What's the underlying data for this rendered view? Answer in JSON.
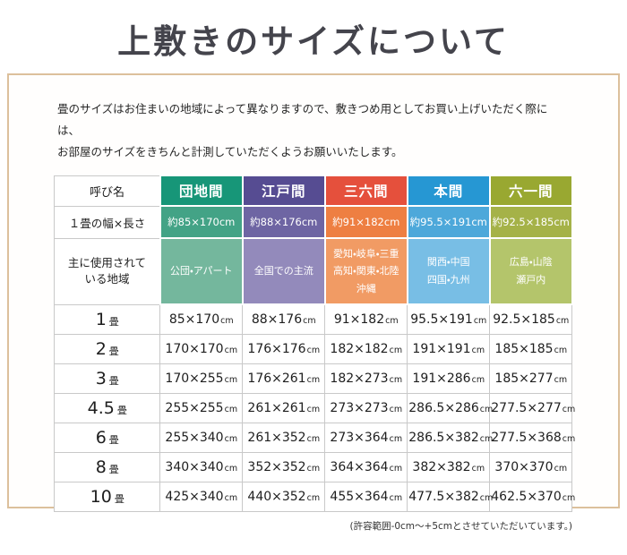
{
  "page": {
    "title": "上敷きのサイズについて",
    "intro_line1": "畳のサイズはお住まいの地域によって異なりますので、敷きつめ用としてお買い上げいただく際には、",
    "intro_line2": "お部屋のサイズをきちんと計測していただくようお願いいたします。",
    "footnote": "(許容範囲-0cm～+5cmとさせていただいています。)"
  },
  "colors": {
    "frame_border": "#dcc09c",
    "grid_line": "#c9c9c9",
    "title_text": "#44444c",
    "column_palette": [
      {
        "header": "#179678",
        "one_mat": "#43a386",
        "regions": "#74b79d"
      },
      {
        "header": "#564c92",
        "one_mat": "#6e65a3",
        "regions": "#938abb"
      },
      {
        "header": "#e5503c",
        "one_mat": "#ee7f42",
        "regions": "#f19b64"
      },
      {
        "header": "#2697d3",
        "one_mat": "#4da8da",
        "regions": "#78bee5"
      },
      {
        "header": "#99a831",
        "one_mat": "#a5b248",
        "regions": "#b4c56b"
      }
    ]
  },
  "chart_data": {
    "type": "table",
    "corner_label": "呼び名",
    "row_labels": {
      "one_mat": "１畳の幅×長さ",
      "regions": "主に使用されている地域"
    },
    "columns": [
      {
        "name": "団地間",
        "one_mat": "約85×170cm",
        "regions": "公団・アパート"
      },
      {
        "name": "江戸間",
        "one_mat": "約88×176cm",
        "regions": "全国での主流"
      },
      {
        "name": "三六間",
        "one_mat": "約91×182cm",
        "regions": "愛知・岐阜・三重\n高知・関東・北陸\n沖縄"
      },
      {
        "name": "本間",
        "one_mat": "約95.5×191cm",
        "regions": "関西・中国\n四国・九州"
      },
      {
        "name": "六一間",
        "one_mat": "約92.5×185cm",
        "regions": "広島・山陰\n瀬戸内"
      }
    ],
    "size_rows": [
      {
        "num": "1",
        "unit": "畳",
        "values": [
          "85×170cm",
          "88×176cm",
          "91×182cm",
          "95.5×191cm",
          "92.5×185cm"
        ]
      },
      {
        "num": "2",
        "unit": "畳",
        "values": [
          "170×170cm",
          "176×176cm",
          "182×182cm",
          "191×191cm",
          "185×185cm"
        ]
      },
      {
        "num": "3",
        "unit": "畳",
        "values": [
          "170×255cm",
          "176×261cm",
          "182×273cm",
          "191×286cm",
          "185×277cm"
        ]
      },
      {
        "num": "4.5",
        "unit": "畳",
        "values": [
          "255×255cm",
          "261×261cm",
          "273×273cm",
          "286.5×286cm",
          "277.5×277cm"
        ]
      },
      {
        "num": "6",
        "unit": "畳",
        "values": [
          "255×340cm",
          "261×352cm",
          "273×364cm",
          "286.5×382cm",
          "277.5×368cm"
        ]
      },
      {
        "num": "8",
        "unit": "畳",
        "values": [
          "340×340cm",
          "352×352cm",
          "364×364cm",
          "382×382cm",
          "370×370cm"
        ]
      },
      {
        "num": "10",
        "unit": "畳",
        "values": [
          "425×340cm",
          "440×352cm",
          "455×364cm",
          "477.5×382cm",
          "462.5×370cm"
        ]
      }
    ]
  }
}
